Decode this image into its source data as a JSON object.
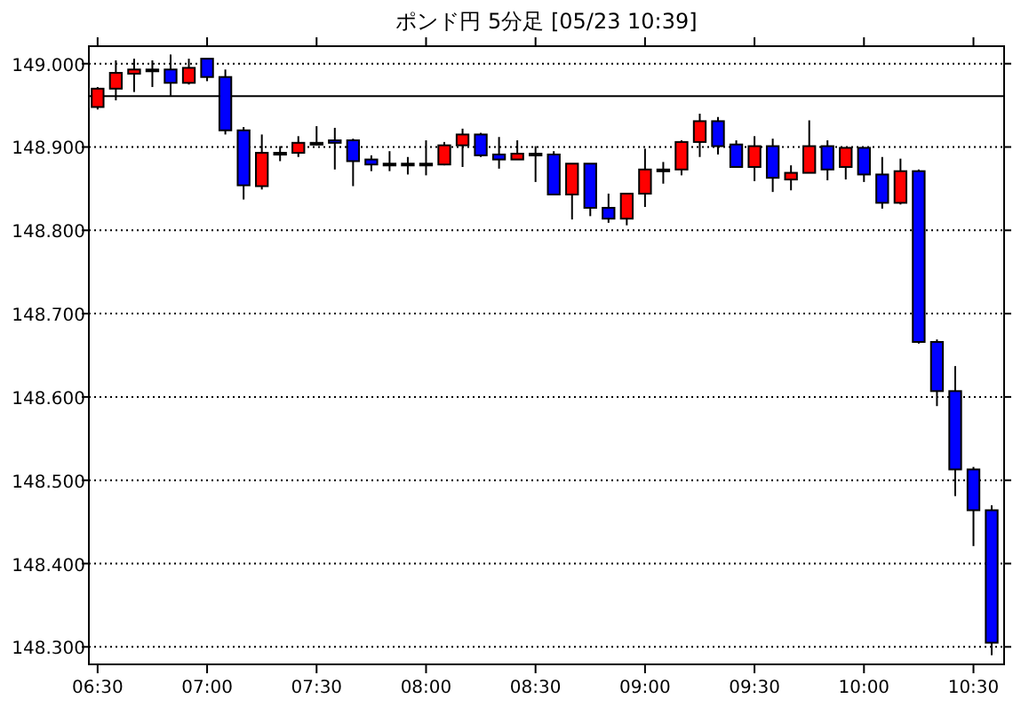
{
  "chart_data": {
    "type": "candlestick",
    "title": "ポンド円 5分足 [05/23 10:39]",
    "x": [
      6.5,
      6.5833,
      6.6667,
      6.75,
      6.8333,
      6.9167,
      7.0,
      7.0833,
      7.1667,
      7.25,
      7.3333,
      7.4167,
      7.5,
      7.5833,
      7.6667,
      7.75,
      7.8333,
      7.9167,
      8.0,
      8.0833,
      8.1667,
      8.25,
      8.3333,
      8.4167,
      8.5,
      8.5833,
      8.6667,
      8.75,
      8.8333,
      8.9167,
      9.0,
      9.0833,
      9.1667,
      9.25,
      9.3333,
      9.4167,
      9.5,
      9.5833,
      9.6667,
      9.75,
      9.8333,
      9.9167,
      10.0,
      10.0833,
      10.1667,
      10.25,
      10.3333,
      10.4167,
      10.5,
      10.5833
    ],
    "ohlc": [
      [
        148.948,
        148.972,
        148.945,
        148.97
      ],
      [
        148.97,
        149.004,
        148.956,
        148.989
      ],
      [
        148.988,
        149.006,
        148.966,
        148.993
      ],
      [
        148.993,
        149.004,
        148.972,
        148.993
      ],
      [
        148.993,
        149.011,
        148.961,
        148.977
      ],
      [
        148.977,
        149.006,
        148.975,
        148.995
      ],
      [
        149.006,
        149.006,
        148.979,
        148.984
      ],
      [
        148.984,
        148.993,
        148.915,
        148.92
      ],
      [
        148.92,
        148.924,
        148.837,
        148.854
      ],
      [
        148.853,
        148.915,
        148.849,
        148.893
      ],
      [
        148.893,
        148.901,
        148.883,
        148.893
      ],
      [
        148.893,
        148.913,
        148.888,
        148.905
      ],
      [
        148.905,
        148.925,
        148.902,
        148.905
      ],
      [
        148.908,
        148.923,
        148.873,
        148.905
      ],
      [
        148.908,
        148.91,
        148.853,
        148.883
      ],
      [
        148.885,
        148.89,
        148.871,
        148.879
      ],
      [
        148.88,
        148.895,
        148.871,
        148.88
      ],
      [
        148.88,
        148.888,
        148.867,
        148.88
      ],
      [
        148.88,
        148.908,
        148.866,
        148.88
      ],
      [
        148.879,
        148.906,
        148.878,
        148.902
      ],
      [
        148.902,
        148.922,
        148.876,
        148.915
      ],
      [
        148.915,
        148.917,
        148.888,
        148.89
      ],
      [
        148.891,
        148.912,
        148.874,
        148.885
      ],
      [
        148.885,
        148.908,
        148.885,
        148.892
      ],
      [
        148.892,
        148.901,
        148.858,
        148.892
      ],
      [
        148.891,
        148.895,
        148.843,
        148.843
      ],
      [
        148.843,
        148.88,
        148.813,
        148.88
      ],
      [
        148.88,
        148.88,
        148.817,
        148.827
      ],
      [
        148.827,
        148.844,
        148.809,
        148.814
      ],
      [
        148.814,
        148.844,
        148.806,
        148.844
      ],
      [
        148.844,
        148.898,
        148.828,
        148.873
      ],
      [
        148.873,
        148.882,
        148.856,
        148.873
      ],
      [
        148.873,
        148.908,
        148.866,
        148.906
      ],
      [
        148.906,
        148.94,
        148.888,
        148.931
      ],
      [
        148.931,
        148.936,
        148.891,
        148.901
      ],
      [
        148.903,
        148.908,
        148.876,
        148.876
      ],
      [
        148.876,
        148.913,
        148.859,
        148.901
      ],
      [
        148.901,
        148.91,
        148.846,
        148.863
      ],
      [
        148.861,
        148.878,
        148.848,
        148.869
      ],
      [
        148.869,
        148.932,
        148.869,
        148.901
      ],
      [
        148.901,
        148.908,
        148.86,
        148.873
      ],
      [
        148.876,
        148.899,
        148.861,
        148.899
      ],
      [
        148.899,
        148.899,
        148.858,
        148.867
      ],
      [
        148.867,
        148.888,
        148.826,
        148.833
      ],
      [
        148.833,
        148.886,
        148.831,
        148.871
      ],
      [
        148.871,
        148.873,
        148.664,
        148.666
      ],
      [
        148.666,
        148.669,
        148.589,
        148.607
      ],
      [
        148.607,
        148.637,
        148.481,
        148.513
      ],
      [
        148.513,
        148.516,
        148.421,
        148.464
      ],
      [
        148.464,
        148.47,
        148.29,
        148.305
      ]
    ],
    "colors": [
      "#ff0000",
      "#ff0000",
      "#ff0000",
      "#000000",
      "#0000ff",
      "#ff0000",
      "#0000ff",
      "#0000ff",
      "#0000ff",
      "#ff0000",
      "#000000",
      "#ff0000",
      "#000000",
      "#0000ff",
      "#0000ff",
      "#0000ff",
      "#000000",
      "#000000",
      "#000000",
      "#ff0000",
      "#ff0000",
      "#0000ff",
      "#0000ff",
      "#ff0000",
      "#000000",
      "#0000ff",
      "#ff0000",
      "#0000ff",
      "#0000ff",
      "#ff0000",
      "#ff0000",
      "#000000",
      "#ff0000",
      "#ff0000",
      "#0000ff",
      "#0000ff",
      "#ff0000",
      "#0000ff",
      "#ff0000",
      "#ff0000",
      "#0000ff",
      "#ff0000",
      "#0000ff",
      "#0000ff",
      "#ff0000",
      "#0000ff",
      "#0000ff",
      "#0000ff",
      "#0000ff",
      "#0000ff"
    ],
    "xlim": [
      6.46,
      10.64
    ],
    "xticks": [
      {
        "value": 6.5,
        "label": "06:30"
      },
      {
        "value": 7.0,
        "label": "07:00"
      },
      {
        "value": 7.5,
        "label": "07:30"
      },
      {
        "value": 8.0,
        "label": "08:00"
      },
      {
        "value": 8.5,
        "label": "08:30"
      },
      {
        "value": 9.0,
        "label": "09:00"
      },
      {
        "value": 9.5,
        "label": "09:30"
      },
      {
        "value": 10.0,
        "label": "10:00"
      },
      {
        "value": 10.5,
        "label": "10:30"
      }
    ],
    "ylim": [
      148.279,
      149.021
    ],
    "yticks": [
      {
        "value": 148.3,
        "label": "148.300"
      },
      {
        "value": 148.4,
        "label": "148.400"
      },
      {
        "value": 148.5,
        "label": "148.500"
      },
      {
        "value": 148.6,
        "label": "148.600"
      },
      {
        "value": 148.7,
        "label": "148.700"
      },
      {
        "value": 148.8,
        "label": "148.800"
      },
      {
        "value": 148.9,
        "label": "148.900"
      },
      {
        "value": 149.0,
        "label": "149.000"
      }
    ],
    "grid": "y",
    "ref_lines": [
      {
        "axis": "y",
        "value": 148.961,
        "label": null,
        "color": "#000000",
        "line_style": "solid"
      }
    ]
  }
}
